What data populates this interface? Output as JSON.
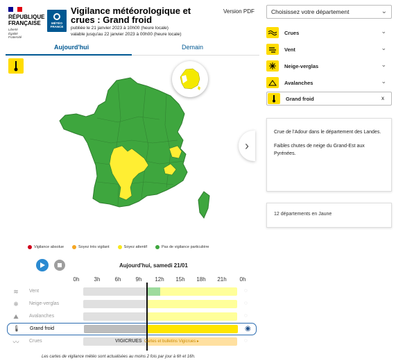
{
  "header": {
    "rf_name_1": "RÉPUBLIQUE",
    "rf_name_2": "FRANÇAISE",
    "rf_motto_1": "Liberté",
    "rf_motto_2": "Égalité",
    "rf_motto_3": "Fraternité",
    "mf_1": "MÉTÉO",
    "mf_2": "FRANCE",
    "title": "Vigilance météorologique et crues : Grand froid",
    "published": "publiée le 21 janvier 2023 à 10h00 (heure locale)",
    "valid": "valable jusqu'au 22 janvier 2023 à 00h00 (heure locale)",
    "version_pdf": "Version PDF"
  },
  "tabs": {
    "today": "Aujourd'hui",
    "tomorrow": "Demain"
  },
  "legend": [
    {
      "label": "Vigilance absolue",
      "color": "#d0021b"
    },
    {
      "label": "Soyez très vigilant",
      "color": "#f5a623"
    },
    {
      "label": "Soyez attentif",
      "color": "#f8e71c"
    },
    {
      "label": "Pas de vigilance particulière",
      "color": "#3ea63e"
    }
  ],
  "timeline": {
    "date": "Aujourd'hui, samedi 21/01",
    "hours": [
      "0h",
      "3h",
      "6h",
      "9h",
      "12h",
      "15h",
      "18h",
      "21h",
      "0h"
    ],
    "rows": [
      {
        "label": "Vent",
        "icon": "wind-icon"
      },
      {
        "label": "Neige-verglas",
        "icon": "snow-icon"
      },
      {
        "label": "Avalanches",
        "icon": "avalanche-icon"
      },
      {
        "label": "Grand froid",
        "icon": "thermometer-icon"
      },
      {
        "label": "Crues",
        "icon": "flood-icon"
      }
    ],
    "vigicrues": "VIGICRUES",
    "vigicrues_link": "Cartes et bulletins Vigicrues ▸",
    "footer": "Les cartes de vigilance météo sont actualisées au moins 2 fois par jour à 6h et 16h."
  },
  "right": {
    "select_placeholder": "Choisissez votre département",
    "phenomena": [
      {
        "label": "Crues",
        "color": "#ffdc00"
      },
      {
        "label": "Vent",
        "color": "#ffdc00"
      },
      {
        "label": "Neige-verglas",
        "color": "#ffdc00"
      },
      {
        "label": "Avalanches",
        "color": "#ffdc00"
      },
      {
        "label": "Grand froid",
        "color": "#ffdc00"
      }
    ],
    "close": "x",
    "desc_1": "Crue de l'Adour dans le département des Landes.",
    "desc_2": "Faibles chutes de neige du Grand-Est aux Pyrénées.",
    "count": "12 départements en Jaune"
  },
  "colors": {
    "green": "#3ea63e",
    "yellow": "#ffee33",
    "accent": "#005892"
  }
}
